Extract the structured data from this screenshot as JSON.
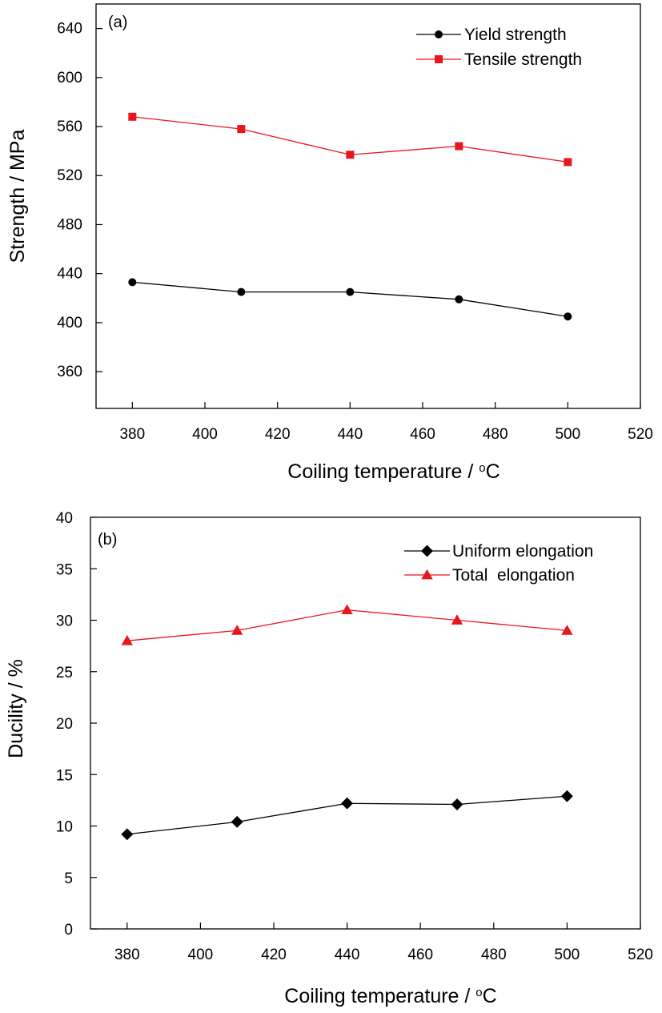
{
  "chart_data": [
    {
      "type": "line",
      "panel_label": "(a)",
      "xlabel": "Coiling temperature / ",
      "xlabel_unit_sup": "o",
      "xlabel_unit": "C",
      "ylabel": "Strength / MPa",
      "xlim": [
        370,
        520
      ],
      "ylim": [
        330,
        660
      ],
      "xticks": [
        "380",
        "400",
        "420",
        "440",
        "460",
        "480",
        "500",
        "520"
      ],
      "yticks": [
        "360",
        "400",
        "440",
        "480",
        "520",
        "560",
        "600",
        "640"
      ],
      "legend_position": "top-right",
      "grid": false,
      "series": [
        {
          "name": "Yield strength",
          "color": "#000000",
          "marker": "circle",
          "x": [
            380,
            410,
            440,
            470,
            500
          ],
          "y": [
            433,
            425,
            425,
            419,
            405
          ]
        },
        {
          "name": "Tensile strength",
          "color": "#e8161d",
          "marker": "square",
          "x": [
            380,
            410,
            440,
            470,
            500
          ],
          "y": [
            568,
            558,
            537,
            544,
            531
          ]
        }
      ]
    },
    {
      "type": "line",
      "panel_label": "(b)",
      "xlabel": "Coiling temperature / ",
      "xlabel_unit_sup": "o",
      "xlabel_unit": "C",
      "ylabel": "Ducility / %",
      "xlim": [
        370,
        520
      ],
      "ylim": [
        0,
        40
      ],
      "xticks": [
        "380",
        "400",
        "420",
        "440",
        "460",
        "480",
        "500",
        "520"
      ],
      "yticks": [
        "0",
        "5",
        "10",
        "15",
        "20",
        "25",
        "30",
        "35",
        "40"
      ],
      "legend_position": "top-right",
      "grid": false,
      "series": [
        {
          "name": "Uniform elongation",
          "color": "#000000",
          "marker": "diamond",
          "x": [
            380,
            410,
            440,
            470,
            500
          ],
          "y": [
            9.2,
            10.4,
            12.2,
            12.1,
            12.9
          ]
        },
        {
          "name": "Total  elongation",
          "color": "#e8161d",
          "marker": "triangle",
          "x": [
            380,
            410,
            440,
            470,
            500
          ],
          "y": [
            28,
            29,
            31,
            30,
            29
          ]
        }
      ]
    }
  ]
}
